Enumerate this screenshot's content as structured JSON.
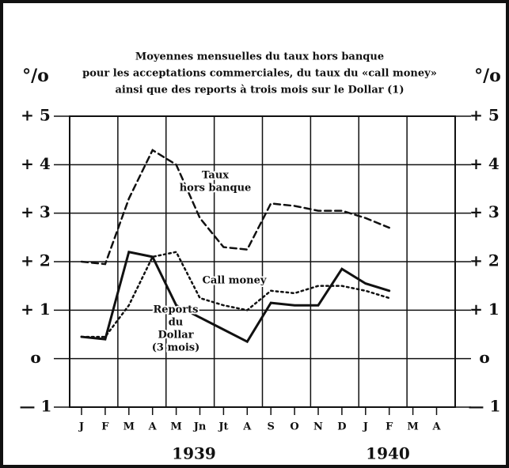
{
  "chart_data": {
    "type": "line",
    "title": [
      "Moyennes mensuelles du taux hors banque",
      "pour les acceptations commerciales, du taux du «call money»",
      "ainsi que des reports à trois mois sur le Dollar (1)"
    ],
    "y_unit": "°/o",
    "categories": [
      "J",
      "F",
      "M",
      "A",
      "M",
      "Jn",
      "Jt",
      "A",
      "S",
      "O",
      "N",
      "D",
      "J",
      "F",
      "M",
      "A"
    ],
    "years": [
      "1939",
      "1940"
    ],
    "ylim": [
      -1,
      5
    ],
    "yticks": [
      {
        "value": 5,
        "label": "+ 5"
      },
      {
        "value": 4,
        "label": "+ 4"
      },
      {
        "value": 3,
        "label": "+ 3"
      },
      {
        "value": 2,
        "label": "+ 2"
      },
      {
        "value": 1,
        "label": "+ 1"
      },
      {
        "value": 0,
        "label": "o"
      },
      {
        "value": -1,
        "label": "— 1"
      }
    ],
    "grid": true,
    "series": [
      {
        "name_lines": [
          "Taux",
          "hors banque"
        ],
        "color": "#111",
        "style": "dashed",
        "values": [
          2.0,
          1.95,
          3.3,
          4.3,
          4.0,
          2.9,
          2.3,
          2.25,
          3.2,
          3.15,
          3.05,
          3.05,
          2.9,
          2.7,
          null,
          null
        ]
      },
      {
        "name_lines": [
          "Call money"
        ],
        "color": "#111",
        "style": "dotted",
        "values": [
          0.45,
          0.45,
          1.1,
          2.1,
          2.2,
          1.25,
          1.1,
          1.0,
          1.4,
          1.35,
          1.5,
          1.5,
          1.4,
          1.25,
          null,
          null
        ]
      },
      {
        "name_lines": [
          "Reports",
          "du",
          "Dollar",
          "(3 mois)"
        ],
        "color": "#111",
        "style": "solid",
        "values": [
          0.45,
          0.4,
          2.2,
          2.1,
          1.1,
          0.85,
          0.6,
          0.35,
          1.15,
          1.1,
          1.1,
          1.85,
          1.55,
          1.4,
          null,
          null
        ]
      }
    ]
  }
}
